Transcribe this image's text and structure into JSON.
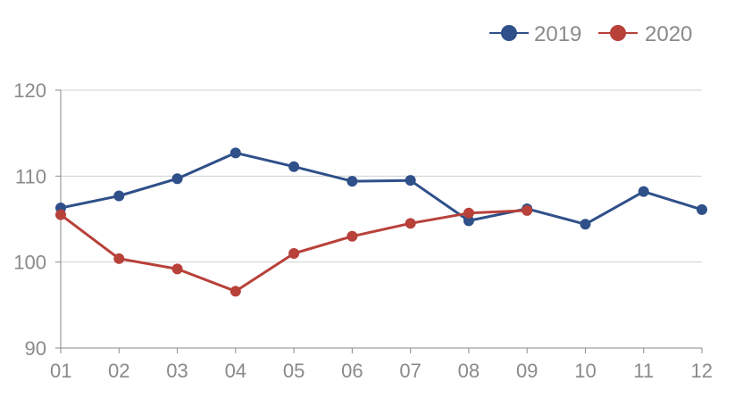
{
  "chart_data": {
    "type": "line",
    "title": "",
    "xlabel": "",
    "ylabel": "",
    "categories": [
      "01",
      "02",
      "03",
      "04",
      "05",
      "06",
      "07",
      "08",
      "09",
      "10",
      "11",
      "12"
    ],
    "ylim": [
      90,
      120
    ],
    "yticks": [
      90,
      100,
      110,
      120
    ],
    "grid": true,
    "legend_position": "top-right",
    "series": [
      {
        "name": "2019",
        "color": "#2f5089",
        "values": [
          106.3,
          107.7,
          109.7,
          112.7,
          111.1,
          109.4,
          109.5,
          104.8,
          106.2,
          104.4,
          108.2,
          106.1
        ]
      },
      {
        "name": "2020",
        "color": "#b8413a",
        "values": [
          105.5,
          100.4,
          99.2,
          96.6,
          101.0,
          103.0,
          104.5,
          105.7,
          106.0,
          null,
          null,
          null
        ]
      }
    ]
  }
}
